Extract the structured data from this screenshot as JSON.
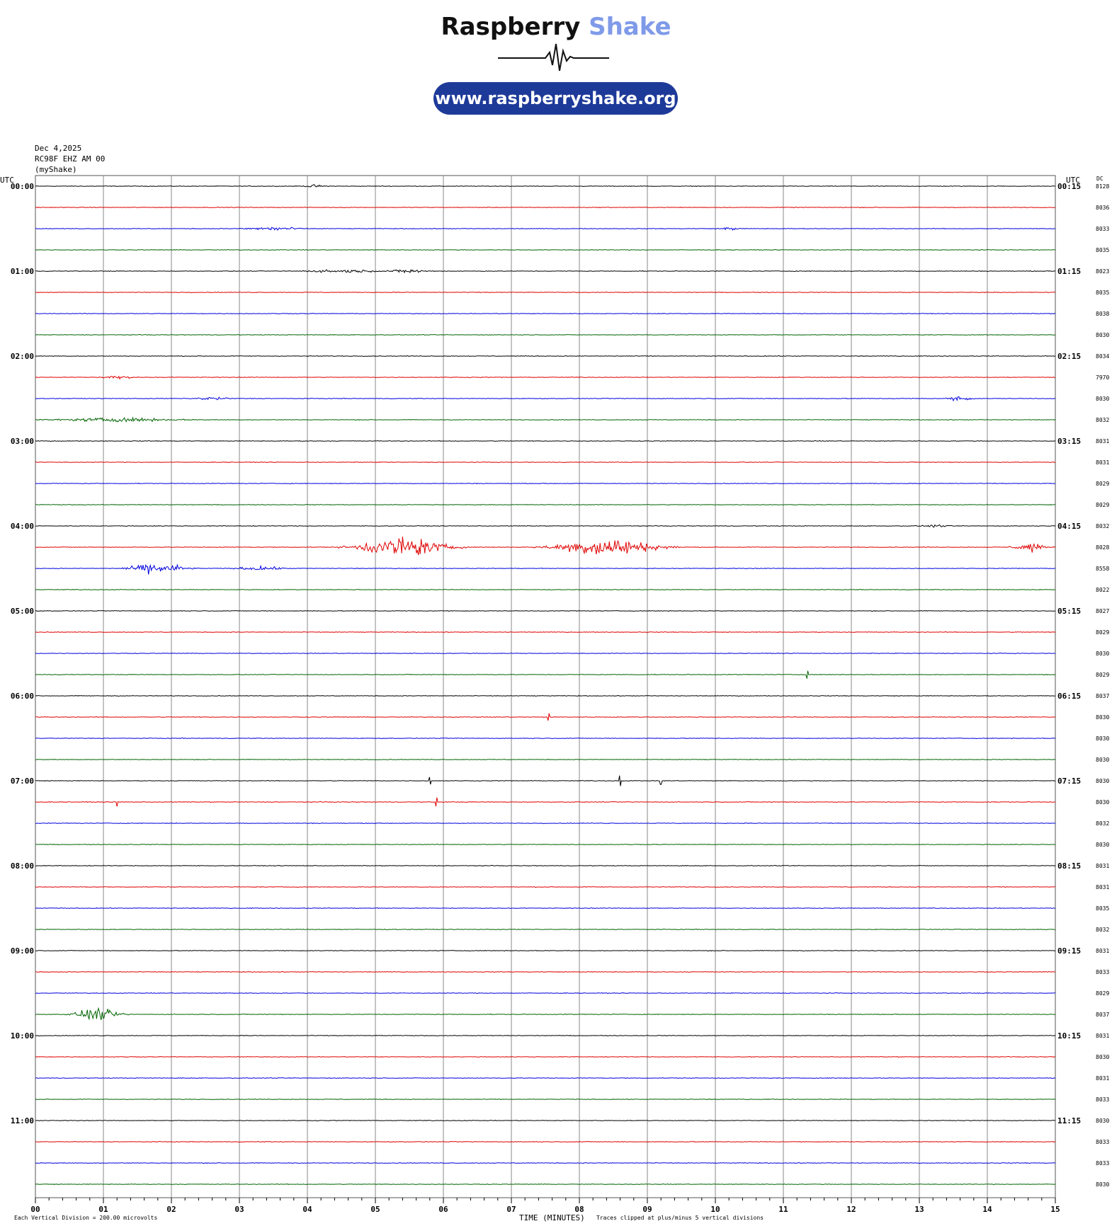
{
  "logo": {
    "brand_main": "Raspberry",
    "brand_accent": "Shake",
    "url": "www.raspberryshake.org"
  },
  "header": {
    "date": "Dec 4,2025",
    "station": "RC98F EHZ AM 00",
    "network": "(myShake)"
  },
  "colors": {
    "trace_cycle": [
      "#000000",
      "#e00000",
      "#0000dd",
      "#006400"
    ],
    "logo_accent": "#7f9ae8",
    "url_bg": "#1e3a99"
  },
  "chart_data": {
    "type": "line",
    "left_axis_title": "UTC",
    "right_axis_title": "UTC",
    "dc_title": "DC",
    "xlabel": "TIME (MINUTES)",
    "xlim": [
      0,
      15
    ],
    "x_ticks": [
      "00",
      "01",
      "02",
      "03",
      "04",
      "05",
      "06",
      "07",
      "08",
      "09",
      "10",
      "11",
      "12",
      "13",
      "14",
      "15"
    ],
    "rows_per_hour": 4,
    "left_hour_labels": [
      "00:00",
      "01:00",
      "02:00",
      "03:00",
      "04:00",
      "05:00",
      "06:00",
      "07:00",
      "08:00",
      "09:00",
      "10:00",
      "11:00"
    ],
    "right_hour_labels": [
      "00:15",
      "01:15",
      "02:15",
      "03:15",
      "04:15",
      "05:15",
      "06:15",
      "07:15",
      "08:15",
      "09:15",
      "10:15",
      "11:15"
    ],
    "dc_values": [
      "8128",
      "8036",
      "8033",
      "8035",
      "8023",
      "8035",
      "8038",
      "8030",
      "8034",
      "7970",
      "8030",
      "8032",
      "8031",
      "8031",
      "8029",
      "8029",
      "8032",
      "8028",
      "8558",
      "8022",
      "8027",
      "8029",
      "8030",
      "8029",
      "8037",
      "8030",
      "8030",
      "8030",
      "8030",
      "8030",
      "8032",
      "8030",
      "8031",
      "8031",
      "8035",
      "8032",
      "8031",
      "8033",
      "8029",
      "8037",
      "8031",
      "8030",
      "8031",
      "8033",
      "8030",
      "8033",
      "8033",
      "8030"
    ],
    "events": [
      {
        "row": 0,
        "x": 4.1,
        "width": 0.3,
        "amp": 0.2
      },
      {
        "row": 2,
        "x": 3.5,
        "width": 0.9,
        "amp": 0.3
      },
      {
        "row": 2,
        "x": 10.2,
        "width": 0.3,
        "amp": 0.25
      },
      {
        "row": 4,
        "x": 4.5,
        "width": 1.4,
        "amp": 0.2
      },
      {
        "row": 4,
        "x": 5.5,
        "width": 0.6,
        "amp": 0.3
      },
      {
        "row": 9,
        "x": 1.2,
        "width": 0.5,
        "amp": 0.25
      },
      {
        "row": 10,
        "x": 2.6,
        "width": 0.6,
        "amp": 0.25
      },
      {
        "row": 10,
        "x": 13.6,
        "width": 0.4,
        "amp": 0.35
      },
      {
        "row": 11,
        "x": 1.2,
        "width": 2.0,
        "amp": 0.3
      },
      {
        "row": 16,
        "x": 13.2,
        "width": 0.5,
        "amp": 0.15
      },
      {
        "row": 17,
        "x": 5.4,
        "width": 1.6,
        "amp": 1.6
      },
      {
        "row": 17,
        "x": 8.4,
        "width": 1.8,
        "amp": 1.4
      },
      {
        "row": 17,
        "x": 14.6,
        "width": 0.5,
        "amp": 0.8
      },
      {
        "row": 18,
        "x": 1.8,
        "width": 1.0,
        "amp": 0.8
      },
      {
        "row": 18,
        "x": 3.3,
        "width": 0.8,
        "amp": 0.3
      },
      {
        "row": 39,
        "x": 0.9,
        "width": 0.8,
        "amp": 0.9
      }
    ],
    "spikes": [
      {
        "row": 23,
        "x": 11.35,
        "amp": 0.5
      },
      {
        "row": 25,
        "x": 7.55,
        "amp": 0.5
      },
      {
        "row": 28,
        "x": 5.8,
        "amp": 0.5
      },
      {
        "row": 28,
        "x": 8.6,
        "amp": 0.7
      },
      {
        "row": 28,
        "x": 9.2,
        "amp": 0.5
      },
      {
        "row": 29,
        "x": 1.2,
        "amp": 0.6
      },
      {
        "row": 29,
        "x": 5.9,
        "amp": 0.6
      }
    ],
    "footer_left": "Each Vertical Division =  200.00 microvolts",
    "footer_right": "Traces clipped at plus/minus 5 vertical divisions"
  }
}
